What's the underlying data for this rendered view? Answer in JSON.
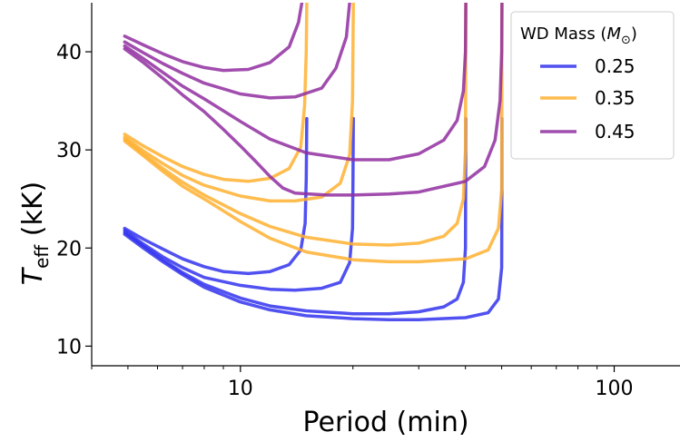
{
  "chart_data": {
    "type": "line",
    "title": "",
    "xlabel": "Period (min)",
    "ylabel_main": "T",
    "ylabel_sub": "eff",
    "ylabel_unit": " (kK)",
    "xscale": "log",
    "xlim": [
      4,
      150
    ],
    "ylim": [
      8,
      45
    ],
    "xticks": [
      10,
      100
    ],
    "xtick_labels": [
      "10",
      "100"
    ],
    "yticks": [
      10,
      20,
      30,
      40
    ],
    "ytick_labels": [
      "10",
      "20",
      "30",
      "40"
    ],
    "grid": false,
    "legend": {
      "title_prefix": "WD Mass (",
      "title_symbol": "M",
      "title_subscript": "⊙",
      "title_suffix": ")",
      "placement": "top-right",
      "entries": [
        {
          "label": "0.25",
          "color": "#3333ee"
        },
        {
          "label": "0.35",
          "color": "#ffb030"
        },
        {
          "label": "0.45",
          "color": "#902ea0"
        }
      ]
    },
    "series": [
      {
        "mass": "0.25",
        "color": "#3333ee",
        "points": [
          [
            4.9,
            22.0
          ],
          [
            5.5,
            20.9
          ],
          [
            6.2,
            19.9
          ],
          [
            7.0,
            18.9
          ],
          [
            8.0,
            18.1
          ],
          [
            9.0,
            17.6
          ],
          [
            10.5,
            17.4
          ],
          [
            12.0,
            17.6
          ],
          [
            13.5,
            18.3
          ],
          [
            14.5,
            19.8
          ],
          [
            14.9,
            22.5
          ],
          [
            15.0,
            27.0
          ],
          [
            15.05,
            33.2
          ]
        ]
      },
      {
        "mass": "0.25",
        "color": "#3333ee",
        "points": [
          [
            4.9,
            21.8
          ],
          [
            5.5,
            20.4
          ],
          [
            6.2,
            19.1
          ],
          [
            7.0,
            18.0
          ],
          [
            8.0,
            17.0
          ],
          [
            10.0,
            16.2
          ],
          [
            12.0,
            15.8
          ],
          [
            14.0,
            15.7
          ],
          [
            16.5,
            15.9
          ],
          [
            18.5,
            16.5
          ],
          [
            19.6,
            18.5
          ],
          [
            19.95,
            22.0
          ],
          [
            20.0,
            27.0
          ],
          [
            20.05,
            33.2
          ]
        ]
      },
      {
        "mass": "0.25",
        "color": "#3333ee",
        "points": [
          [
            4.9,
            21.6
          ],
          [
            5.5,
            20.2
          ],
          [
            6.2,
            18.8
          ],
          [
            7.0,
            17.5
          ],
          [
            8.0,
            16.3
          ],
          [
            10.0,
            14.9
          ],
          [
            12.0,
            14.1
          ],
          [
            15.0,
            13.6
          ],
          [
            20.0,
            13.3
          ],
          [
            25.0,
            13.3
          ],
          [
            30.0,
            13.5
          ],
          [
            35.0,
            14.0
          ],
          [
            38.0,
            14.8
          ],
          [
            39.5,
            16.5
          ],
          [
            40.0,
            20.0
          ],
          [
            40.05,
            27.0
          ],
          [
            40.1,
            33.2
          ]
        ]
      },
      {
        "mass": "0.25",
        "color": "#3333ee",
        "points": [
          [
            4.9,
            21.4
          ],
          [
            5.5,
            20.0
          ],
          [
            6.2,
            18.6
          ],
          [
            7.0,
            17.3
          ],
          [
            8.0,
            16.0
          ],
          [
            10.0,
            14.5
          ],
          [
            12.0,
            13.7
          ],
          [
            15.0,
            13.1
          ],
          [
            20.0,
            12.8
          ],
          [
            25.0,
            12.7
          ],
          [
            30.0,
            12.7
          ],
          [
            40.0,
            12.9
          ],
          [
            46.0,
            13.4
          ],
          [
            49.0,
            14.8
          ],
          [
            50.0,
            18.0
          ],
          [
            50.05,
            25.0
          ],
          [
            50.1,
            33.2
          ]
        ]
      },
      {
        "mass": "0.35",
        "color": "#ffb030",
        "points": [
          [
            4.9,
            31.6
          ],
          [
            5.5,
            30.4
          ],
          [
            6.2,
            29.3
          ],
          [
            7.0,
            28.3
          ],
          [
            8.0,
            27.5
          ],
          [
            9.0,
            27.0
          ],
          [
            10.5,
            26.8
          ],
          [
            12.0,
            27.1
          ],
          [
            13.5,
            28.1
          ],
          [
            14.5,
            30.3
          ],
          [
            14.85,
            34.5
          ],
          [
            15.0,
            40.0
          ],
          [
            15.05,
            45.0
          ]
        ]
      },
      {
        "mass": "0.35",
        "color": "#ffb030",
        "points": [
          [
            4.9,
            31.3
          ],
          [
            5.5,
            29.9
          ],
          [
            6.2,
            28.6
          ],
          [
            7.0,
            27.4
          ],
          [
            8.0,
            26.4
          ],
          [
            10.0,
            25.3
          ],
          [
            12.0,
            24.8
          ],
          [
            14.0,
            24.8
          ],
          [
            16.5,
            25.2
          ],
          [
            18.5,
            26.6
          ],
          [
            19.6,
            29.5
          ],
          [
            19.95,
            35.0
          ],
          [
            20.05,
            45.0
          ]
        ]
      },
      {
        "mass": "0.35",
        "color": "#ffb030",
        "points": [
          [
            4.9,
            31.1
          ],
          [
            5.5,
            29.6
          ],
          [
            6.2,
            28.1
          ],
          [
            7.0,
            26.7
          ],
          [
            8.0,
            25.4
          ],
          [
            10.0,
            23.5
          ],
          [
            12.0,
            22.2
          ],
          [
            15.0,
            21.1
          ],
          [
            20.0,
            20.4
          ],
          [
            25.0,
            20.3
          ],
          [
            30.0,
            20.5
          ],
          [
            35.0,
            21.2
          ],
          [
            38.0,
            22.5
          ],
          [
            39.5,
            25.0
          ],
          [
            40.0,
            30.0
          ],
          [
            40.05,
            37.0
          ],
          [
            40.1,
            45.0
          ]
        ]
      },
      {
        "mass": "0.35",
        "color": "#ffb030",
        "points": [
          [
            4.9,
            30.9
          ],
          [
            5.5,
            29.4
          ],
          [
            6.2,
            27.8
          ],
          [
            7.0,
            26.3
          ],
          [
            8.0,
            25.0
          ],
          [
            10.0,
            22.7
          ],
          [
            12.0,
            21.0
          ],
          [
            15.0,
            19.6
          ],
          [
            20.0,
            18.8
          ],
          [
            25.0,
            18.6
          ],
          [
            30.0,
            18.6
          ],
          [
            40.0,
            18.9
          ],
          [
            46.0,
            19.8
          ],
          [
            49.0,
            22.0
          ],
          [
            50.0,
            26.0
          ],
          [
            50.05,
            35.0
          ],
          [
            50.1,
            45.0
          ]
        ]
      },
      {
        "mass": "0.45",
        "color": "#902ea0",
        "points": [
          [
            4.9,
            41.6
          ],
          [
            5.5,
            40.7
          ],
          [
            6.2,
            39.8
          ],
          [
            7.0,
            39.0
          ],
          [
            8.0,
            38.4
          ],
          [
            9.0,
            38.1
          ],
          [
            10.5,
            38.2
          ],
          [
            12.0,
            38.9
          ],
          [
            13.5,
            40.5
          ],
          [
            14.3,
            43.0
          ],
          [
            14.6,
            45.0
          ]
        ]
      },
      {
        "mass": "0.45",
        "color": "#902ea0",
        "points": [
          [
            4.9,
            41.0
          ],
          [
            5.5,
            39.9
          ],
          [
            6.2,
            38.8
          ],
          [
            7.0,
            37.8
          ],
          [
            8.0,
            36.8
          ],
          [
            10.0,
            35.7
          ],
          [
            12.0,
            35.3
          ],
          [
            14.0,
            35.4
          ],
          [
            16.5,
            36.3
          ],
          [
            18.0,
            38.3
          ],
          [
            19.2,
            41.5
          ],
          [
            19.6,
            45.0
          ]
        ]
      },
      {
        "mass": "0.45",
        "color": "#902ea0",
        "points": [
          [
            4.9,
            40.6
          ],
          [
            5.5,
            39.3
          ],
          [
            6.2,
            37.9
          ],
          [
            7.0,
            36.5
          ],
          [
            8.0,
            35.2
          ],
          [
            10.0,
            32.9
          ],
          [
            12.0,
            31.1
          ],
          [
            15.0,
            29.7
          ],
          [
            20.0,
            29.0
          ],
          [
            25.0,
            29.0
          ],
          [
            30.0,
            29.6
          ],
          [
            35.0,
            31.0
          ],
          [
            38.0,
            33.0
          ],
          [
            39.5,
            36.0
          ],
          [
            40.0,
            40.0
          ],
          [
            40.1,
            45.0
          ]
        ]
      },
      {
        "mass": "0.45",
        "color": "#902ea0",
        "points": [
          [
            4.9,
            40.3
          ],
          [
            5.5,
            38.9
          ],
          [
            6.2,
            37.3
          ],
          [
            7.0,
            35.6
          ],
          [
            8.0,
            33.9
          ],
          [
            9.0,
            32.1
          ],
          [
            10.0,
            30.4
          ],
          [
            11.0,
            28.8
          ],
          [
            12.0,
            27.3
          ],
          [
            13.0,
            26.1
          ],
          [
            14.0,
            25.6
          ],
          [
            17.0,
            25.4
          ],
          [
            20.0,
            25.4
          ],
          [
            25.0,
            25.5
          ],
          [
            30.0,
            25.7
          ],
          [
            40.0,
            26.8
          ],
          [
            45.0,
            28.3
          ],
          [
            48.0,
            31.0
          ],
          [
            49.5,
            35.0
          ],
          [
            50.0,
            40.0
          ],
          [
            50.1,
            45.0
          ]
        ]
      }
    ]
  }
}
